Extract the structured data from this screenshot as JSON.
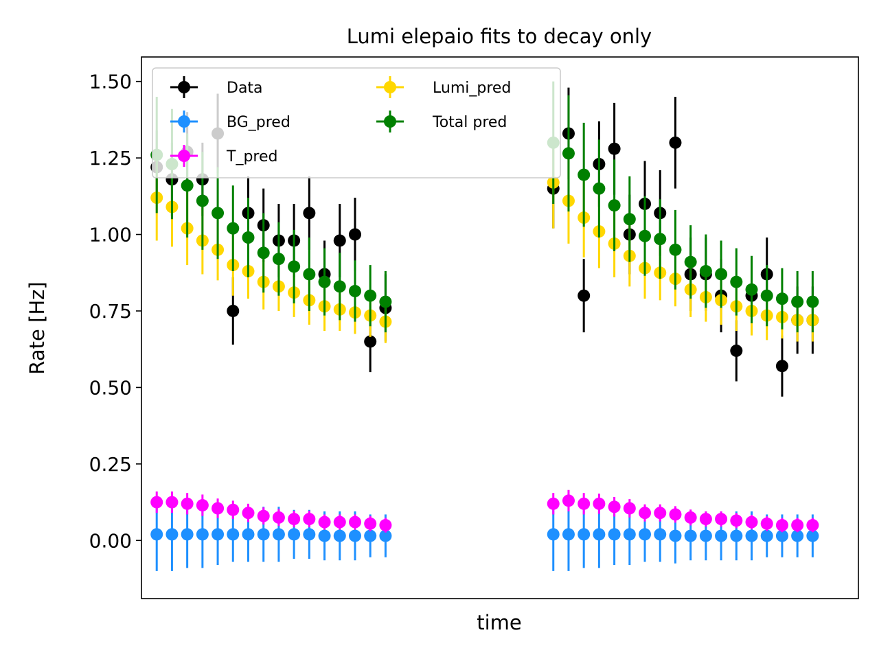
{
  "chart_data": {
    "type": "scatter",
    "title": "Lumi elepaio fits to decay only",
    "xlabel": "time",
    "ylabel": "Rate [Hz]",
    "ylim": [
      -0.19,
      1.58
    ],
    "yticks": [
      "0.00",
      "0.25",
      "0.50",
      "0.75",
      "1.00",
      "1.25",
      "1.50"
    ],
    "x_tick_labels_shown": false,
    "grid": false,
    "legend_position": "upper-left",
    "legend_columns": 2,
    "x": [
      1,
      2,
      3,
      4,
      5,
      6,
      7,
      8,
      9,
      10,
      11,
      12,
      13,
      14,
      15,
      16,
      27,
      28,
      29,
      30,
      31,
      32,
      33,
      34,
      35,
      36,
      37,
      38,
      39,
      40,
      41,
      42,
      43,
      44
    ],
    "series": [
      {
        "name": "Data",
        "color": "#000000",
        "values": [
          1.22,
          1.18,
          1.27,
          1.18,
          1.33,
          0.75,
          1.07,
          1.03,
          0.98,
          0.98,
          1.07,
          0.87,
          0.98,
          1.0,
          0.65,
          0.76,
          1.15,
          1.33,
          0.8,
          1.23,
          1.28,
          1.0,
          1.1,
          1.07,
          1.3,
          0.87,
          0.87,
          0.8,
          0.62,
          0.8,
          0.87,
          0.57,
          0.72,
          0.72
        ],
        "errors": [
          0.12,
          0.12,
          0.13,
          0.12,
          0.13,
          0.11,
          0.12,
          0.12,
          0.12,
          0.12,
          0.12,
          0.11,
          0.12,
          0.12,
          0.1,
          0.11,
          0.13,
          0.15,
          0.12,
          0.14,
          0.15,
          0.13,
          0.14,
          0.14,
          0.15,
          0.12,
          0.12,
          0.12,
          0.1,
          0.12,
          0.12,
          0.1,
          0.11,
          0.11
        ]
      },
      {
        "name": "BG_pred",
        "color": "#1e90ff",
        "values": [
          0.02,
          0.02,
          0.02,
          0.02,
          0.02,
          0.02,
          0.02,
          0.02,
          0.02,
          0.02,
          0.02,
          0.015,
          0.015,
          0.015,
          0.015,
          0.015,
          0.02,
          0.02,
          0.02,
          0.02,
          0.02,
          0.02,
          0.02,
          0.02,
          0.015,
          0.015,
          0.015,
          0.015,
          0.015,
          0.015,
          0.015,
          0.015,
          0.015,
          0.015
        ],
        "errors": [
          0.12,
          0.12,
          0.11,
          0.11,
          0.1,
          0.09,
          0.09,
          0.09,
          0.09,
          0.08,
          0.08,
          0.08,
          0.08,
          0.08,
          0.07,
          0.07,
          0.12,
          0.12,
          0.11,
          0.11,
          0.1,
          0.1,
          0.09,
          0.09,
          0.09,
          0.08,
          0.08,
          0.08,
          0.08,
          0.08,
          0.07,
          0.07,
          0.07,
          0.07
        ]
      },
      {
        "name": "T_pred",
        "color": "#ff00ff",
        "values": [
          0.125,
          0.125,
          0.12,
          0.115,
          0.105,
          0.1,
          0.09,
          0.08,
          0.075,
          0.07,
          0.07,
          0.06,
          0.06,
          0.06,
          0.055,
          0.05,
          0.12,
          0.13,
          0.12,
          0.12,
          0.11,
          0.105,
          0.09,
          0.09,
          0.085,
          0.075,
          0.07,
          0.07,
          0.065,
          0.06,
          0.055,
          0.05,
          0.05,
          0.05
        ],
        "errors": [
          0.035,
          0.035,
          0.035,
          0.035,
          0.032,
          0.03,
          0.03,
          0.028,
          0.028,
          0.027,
          0.027,
          0.025,
          0.025,
          0.025,
          0.025,
          0.024,
          0.035,
          0.035,
          0.035,
          0.033,
          0.032,
          0.03,
          0.028,
          0.028,
          0.027,
          0.026,
          0.025,
          0.025,
          0.025,
          0.024,
          0.024,
          0.023,
          0.023,
          0.023
        ]
      },
      {
        "name": "Lumi_pred",
        "color": "#ffd700",
        "values": [
          1.12,
          1.09,
          1.02,
          0.98,
          0.95,
          0.9,
          0.88,
          0.845,
          0.83,
          0.81,
          0.785,
          0.765,
          0.755,
          0.745,
          0.735,
          0.715,
          1.17,
          1.11,
          1.055,
          1.01,
          0.97,
          0.93,
          0.89,
          0.875,
          0.855,
          0.82,
          0.795,
          0.785,
          0.765,
          0.75,
          0.735,
          0.73,
          0.72,
          0.72
        ],
        "errors": [
          0.14,
          0.13,
          0.12,
          0.11,
          0.1,
          0.1,
          0.09,
          0.09,
          0.08,
          0.08,
          0.08,
          0.08,
          0.07,
          0.07,
          0.07,
          0.07,
          0.15,
          0.14,
          0.13,
          0.12,
          0.11,
          0.1,
          0.1,
          0.09,
          0.09,
          0.09,
          0.08,
          0.08,
          0.08,
          0.08,
          0.08,
          0.07,
          0.07,
          0.07
        ]
      },
      {
        "name": "Total pred",
        "color": "#008000",
        "values": [
          1.26,
          1.23,
          1.16,
          1.11,
          1.07,
          1.02,
          0.99,
          0.94,
          0.92,
          0.895,
          0.87,
          0.845,
          0.83,
          0.815,
          0.8,
          0.78,
          1.3,
          1.265,
          1.195,
          1.15,
          1.095,
          1.05,
          0.995,
          0.985,
          0.95,
          0.91,
          0.88,
          0.87,
          0.845,
          0.82,
          0.8,
          0.79,
          0.78,
          0.78
        ],
        "errors": [
          0.19,
          0.18,
          0.17,
          0.16,
          0.15,
          0.14,
          0.13,
          0.13,
          0.12,
          0.12,
          0.12,
          0.11,
          0.11,
          0.1,
          0.1,
          0.1,
          0.2,
          0.19,
          0.17,
          0.16,
          0.15,
          0.14,
          0.13,
          0.13,
          0.13,
          0.12,
          0.12,
          0.11,
          0.11,
          0.11,
          0.1,
          0.1,
          0.1,
          0.1
        ]
      }
    ]
  }
}
